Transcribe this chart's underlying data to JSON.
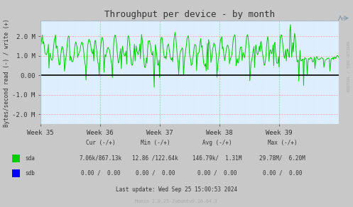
{
  "title": "Throughput per device - by month",
  "ylabel": "Bytes/second read (-) / write (+)",
  "bg_color": "#c8c8c8",
  "plot_bg_color": "#ddeeff",
  "line_color_sda": "#00cc00",
  "line_color_sdb": "#0000ff",
  "zero_line_color": "#000000",
  "ylim": [
    -2500000,
    2800000
  ],
  "yticks": [
    -2000000,
    -1000000,
    0,
    1000000,
    2000000
  ],
  "ytick_labels": [
    "-2.0 M",
    "-1.0 M",
    "0.00",
    "1.0 M",
    "2.0 M"
  ],
  "week_labels": [
    "Week 35",
    "Week 36",
    "Week 37",
    "Week 38",
    "Week 39"
  ],
  "footer_text": "Last update: Wed Sep 25 15:00:53 2024",
  "munin_text": "Munin 2.0.25-2ubuntu0.16.04.3",
  "rrdtool_text": "RRDTOOL / TOBI OETIKER",
  "legend": [
    {
      "label": "sda",
      "color": "#00cc00"
    },
    {
      "label": "sdb",
      "color": "#0000ff"
    }
  ],
  "table_headers": [
    "Cur (-/+)",
    "Min (-/+)",
    "Avg (-/+)",
    "Max (-/+)"
  ],
  "table_sda": [
    "7.06k/867.13k",
    "12.86 /122.64k",
    "146.79k/  1.31M",
    "29.78M/  6.20M"
  ],
  "table_sdb": [
    "0.00 /  0.00",
    "0.00 /  0.00",
    "0.00 /  0.00",
    "0.00 /  0.00"
  ]
}
